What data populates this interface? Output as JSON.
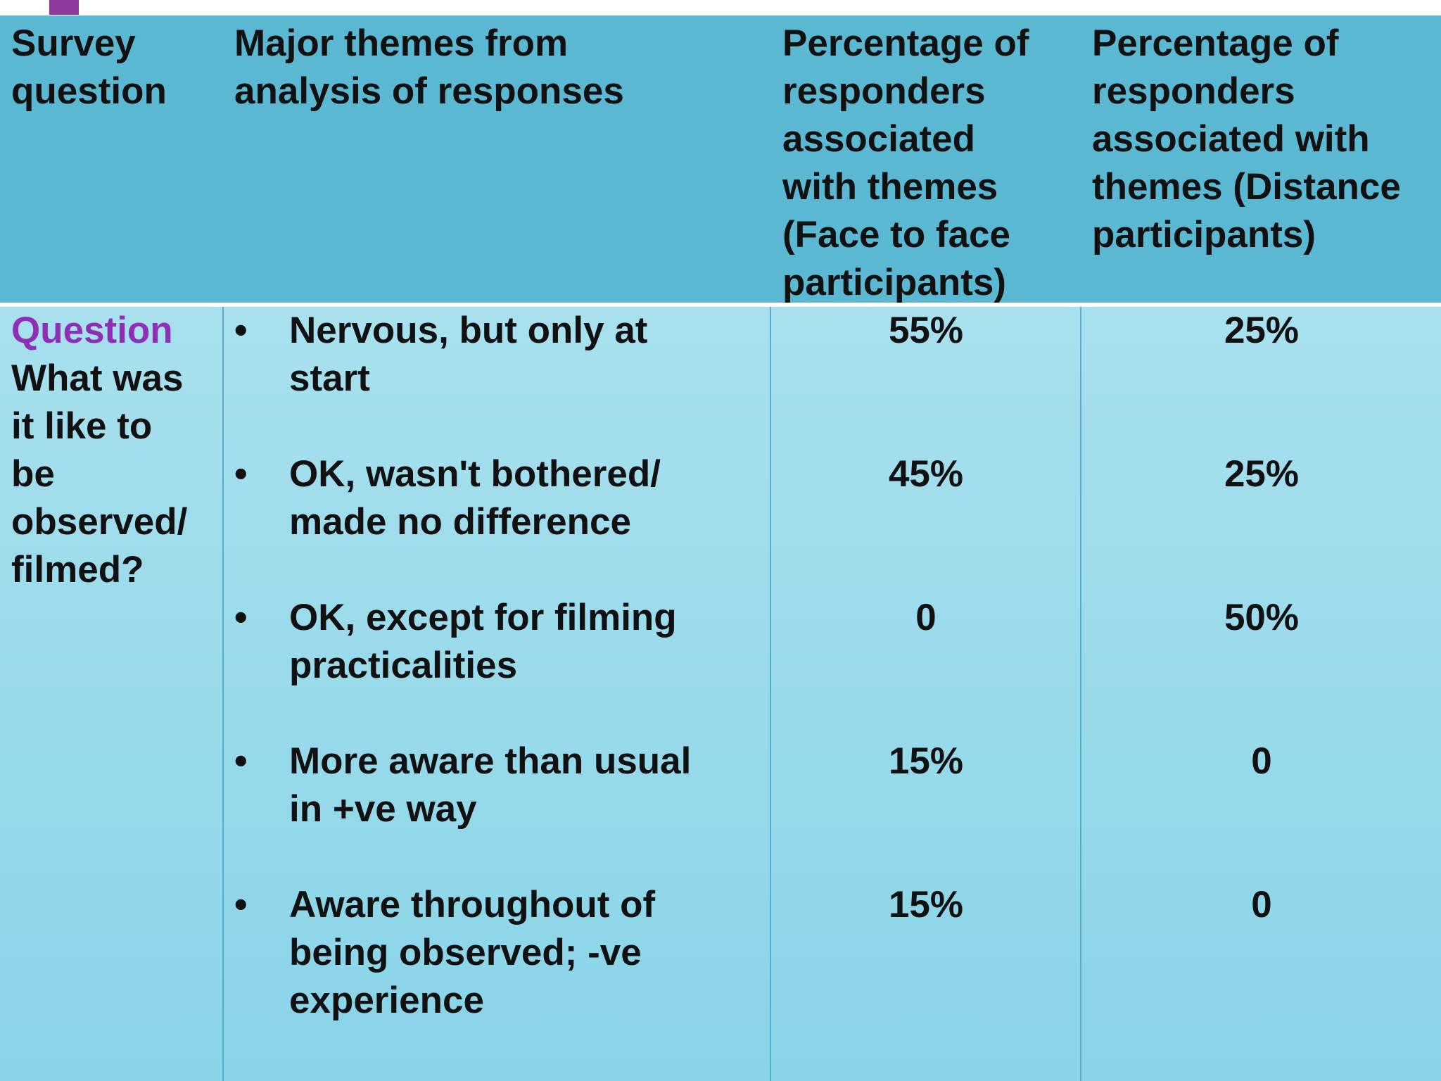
{
  "table": {
    "headers": [
      "Survey\nquestion",
      "Major themes from\nanalysis of responses",
      "Percentage of\nresponders\nassociated\nwith themes\n(Face to face\nparticipants)",
      "Percentage of\nresponders\nassociated with\nthemes (Distance\nparticipants)"
    ],
    "question_label": "Question",
    "question_text": "What was\nit like to\nbe\nobserved/\nfilmed?",
    "bullet_symbol": "•",
    "rows": [
      {
        "theme": "Nervous, but only at\nstart",
        "face_to_face": "55%",
        "distance": "25%"
      },
      {
        "theme": "OK, wasn't bothered/\nmade no difference",
        "face_to_face": "45%",
        "distance": "25%"
      },
      {
        "theme": "OK, except for filming\npracticalities",
        "face_to_face": "0",
        "distance": "50%"
      },
      {
        "theme": "More aware than usual\nin +ve way",
        "face_to_face": "15%",
        "distance": "0"
      },
      {
        "theme": "Aware throughout of\nbeing observed; -ve\nexperience",
        "face_to_face": "15%",
        "distance": "0"
      }
    ]
  },
  "colors": {
    "header_bg": "#5ab8d2",
    "body_bg": "#a8e0ee",
    "question_label": "#8e2fb6",
    "accent_tab": "#8e3a9d"
  }
}
